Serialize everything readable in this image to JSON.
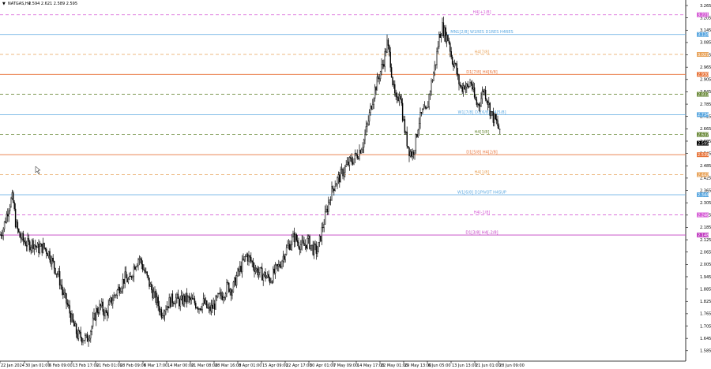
{
  "header": {
    "arrow": "▼",
    "symbol": "NATGAS,H4",
    "ohlc": "2.594 2.621 2.589 2.595"
  },
  "chart_data": {
    "type": "candlestick",
    "symbol": "NATGAS",
    "timeframe": "H4",
    "ylim": [
      1.565,
      3.265
    ],
    "grid": false,
    "y_ticks": [
      "3.265",
      "3.205",
      "3.145",
      "3.085",
      "3.025",
      "2.965",
      "2.905",
      "2.845",
      "2.785",
      "2.725",
      "2.665",
      "2.605",
      "2.545",
      "2.485",
      "2.425",
      "2.365",
      "2.305",
      "2.245",
      "2.185",
      "2.125",
      "2.065",
      "2.005",
      "1.945",
      "1.885",
      "1.825",
      "1.765",
      "1.705",
      "1.645",
      "1.585"
    ],
    "x_labels": [
      "22 Jan 2024",
      "30 Jan 01:00",
      "6 Feb 09:00",
      "13 Feb 17:00",
      "21 Feb 01:00",
      "28 Feb 09:00",
      "6 Mar 17:00",
      "14 Mar 00:00",
      "21 Mar 08:00",
      "28 Mar 16:00",
      "8 Apr 01:00",
      "15 Apr 09:00",
      "22 Apr 17:00",
      "30 Apr 01:00",
      "7 May 09:00",
      "14 May 17:00",
      "22 May 01:00",
      "29 May 13:00",
      "6 Jun 05:00",
      "13 Jun 13:00",
      "21 Jun 01:00",
      "28 Jun 09:00"
    ],
    "last_price": 2.595,
    "price_path": [
      [
        0,
        2.15
      ],
      [
        4,
        2.18
      ],
      [
        8,
        2.24
      ],
      [
        12,
        2.3
      ],
      [
        16,
        2.33
      ],
      [
        20,
        2.2
      ],
      [
        25,
        2.14
      ],
      [
        30,
        2.12
      ],
      [
        36,
        2.1
      ],
      [
        42,
        2.11
      ],
      [
        48,
        2.08
      ],
      [
        55,
        2.09
      ],
      [
        62,
        2.06
      ],
      [
        68,
        2.0
      ],
      [
        74,
        1.95
      ],
      [
        80,
        1.86
      ],
      [
        86,
        1.8
      ],
      [
        92,
        1.72
      ],
      [
        98,
        1.66
      ],
      [
        104,
        1.65
      ],
      [
        110,
        1.64
      ],
      [
        116,
        1.7
      ],
      [
        122,
        1.78
      ],
      [
        128,
        1.8
      ],
      [
        134,
        1.76
      ],
      [
        140,
        1.82
      ],
      [
        146,
        1.86
      ],
      [
        152,
        1.9
      ],
      [
        158,
        1.94
      ],
      [
        164,
        1.92
      ],
      [
        170,
        2.0
      ],
      [
        176,
        2.04
      ],
      [
        180,
        2.0
      ],
      [
        186,
        1.94
      ],
      [
        192,
        1.88
      ],
      [
        198,
        1.83
      ],
      [
        204,
        1.77
      ],
      [
        210,
        1.8
      ],
      [
        216,
        1.83
      ],
      [
        222,
        1.84
      ],
      [
        228,
        1.82
      ],
      [
        234,
        1.84
      ],
      [
        240,
        1.83
      ],
      [
        246,
        1.82
      ],
      [
        252,
        1.8
      ],
      [
        258,
        1.82
      ],
      [
        264,
        1.78
      ],
      [
        270,
        1.8
      ],
      [
        276,
        1.84
      ],
      [
        282,
        1.86
      ],
      [
        288,
        1.9
      ],
      [
        294,
        1.88
      ],
      [
        300,
        1.95
      ],
      [
        306,
        2.0
      ],
      [
        312,
        2.05
      ],
      [
        318,
        2.02
      ],
      [
        324,
        1.98
      ],
      [
        330,
        1.96
      ],
      [
        336,
        1.95
      ],
      [
        342,
        1.93
      ],
      [
        348,
        1.97
      ],
      [
        354,
        2.0
      ],
      [
        360,
        2.06
      ],
      [
        366,
        2.1
      ],
      [
        372,
        2.14
      ],
      [
        378,
        2.11
      ],
      [
        384,
        2.09
      ],
      [
        390,
        2.12
      ],
      [
        396,
        2.08
      ],
      [
        402,
        2.07
      ],
      [
        408,
        2.18
      ],
      [
        413,
        2.26
      ],
      [
        418,
        2.34
      ],
      [
        424,
        2.4
      ],
      [
        430,
        2.43
      ],
      [
        436,
        2.47
      ],
      [
        442,
        2.5
      ],
      [
        448,
        2.52
      ],
      [
        454,
        2.55
      ],
      [
        460,
        2.6
      ],
      [
        466,
        2.7
      ],
      [
        470,
        2.78
      ],
      [
        474,
        2.85
      ],
      [
        478,
        2.9
      ],
      [
        482,
        2.95
      ],
      [
        486,
        3.0
      ],
      [
        490,
        3.08
      ],
      [
        494,
        3.0
      ],
      [
        498,
        2.86
      ],
      [
        502,
        2.78
      ],
      [
        506,
        2.86
      ],
      [
        510,
        2.72
      ],
      [
        514,
        2.62
      ],
      [
        518,
        2.56
      ],
      [
        522,
        2.54
      ],
      [
        526,
        2.6
      ],
      [
        530,
        2.7
      ],
      [
        536,
        2.75
      ],
      [
        540,
        2.74
      ],
      [
        544,
        2.85
      ],
      [
        548,
        2.92
      ],
      [
        552,
        3.0
      ],
      [
        556,
        3.12
      ],
      [
        560,
        3.16
      ],
      [
        564,
        3.12
      ],
      [
        568,
        3.1
      ],
      [
        572,
        3.0
      ],
      [
        576,
        2.98
      ],
      [
        580,
        2.9
      ],
      [
        584,
        2.86
      ],
      [
        588,
        2.88
      ],
      [
        592,
        2.86
      ],
      [
        596,
        2.9
      ],
      [
        600,
        2.82
      ],
      [
        604,
        2.78
      ],
      [
        608,
        2.8
      ],
      [
        612,
        2.86
      ],
      [
        616,
        2.82
      ],
      [
        620,
        2.76
      ],
      [
        624,
        2.72
      ],
      [
        628,
        2.7
      ],
      [
        632,
        2.66
      ],
      [
        634,
        2.595
      ]
    ],
    "levels": [
      {
        "label": "H4[+1/8]",
        "price": 3.22,
        "tag": "3.221",
        "color": "#d65fd6",
        "dash": true
      },
      {
        "label": "MN1[2/8] W1RES D1RES H4RES",
        "price": 3.124,
        "tag": "3.124",
        "color": "#5aa7e0",
        "dash": false
      },
      {
        "label": "H4[7/8]",
        "price": 3.027,
        "tag": "3.027",
        "color": "#e8a35a",
        "dash": true
      },
      {
        "label": "D1[7/8] H4[6/8]",
        "price": 2.93,
        "tag": "2.930",
        "color": "#e8743a",
        "dash": false
      },
      {
        "label": "",
        "price": 2.833,
        "tag": "2.833",
        "color": "#6b8a3a",
        "dash": true
      },
      {
        "label": "W1[7/8] D1[6/8] H4[5/8]",
        "price": 2.734,
        "tag": "2.734",
        "color": "#5aa7e0",
        "dash": false
      },
      {
        "label": "H4[3/8]",
        "price": 2.637,
        "tag": "2.637",
        "color": "#6b8a3a",
        "dash": true
      },
      {
        "label": "D1[5/8] H4[2/8]",
        "price": 2.539,
        "tag": "2.539",
        "color": "#e8743a",
        "dash": false
      },
      {
        "label": "H4[1/8]",
        "price": 2.442,
        "tag": "2.442",
        "color": "#e8a35a",
        "dash": true
      },
      {
        "label": "W1[6/8] D1PIVOT H4SUP",
        "price": 2.344,
        "tag": "2.344",
        "color": "#5aa7e0",
        "dash": false
      },
      {
        "label": "H4[-1/8]",
        "price": 2.246,
        "tag": "2.246",
        "color": "#d65fd6",
        "dash": true
      },
      {
        "label": "D1[3/8] H4[-2/8]",
        "price": 2.148,
        "tag": "2.148",
        "color": "#c23fc2",
        "dash": false
      }
    ]
  }
}
